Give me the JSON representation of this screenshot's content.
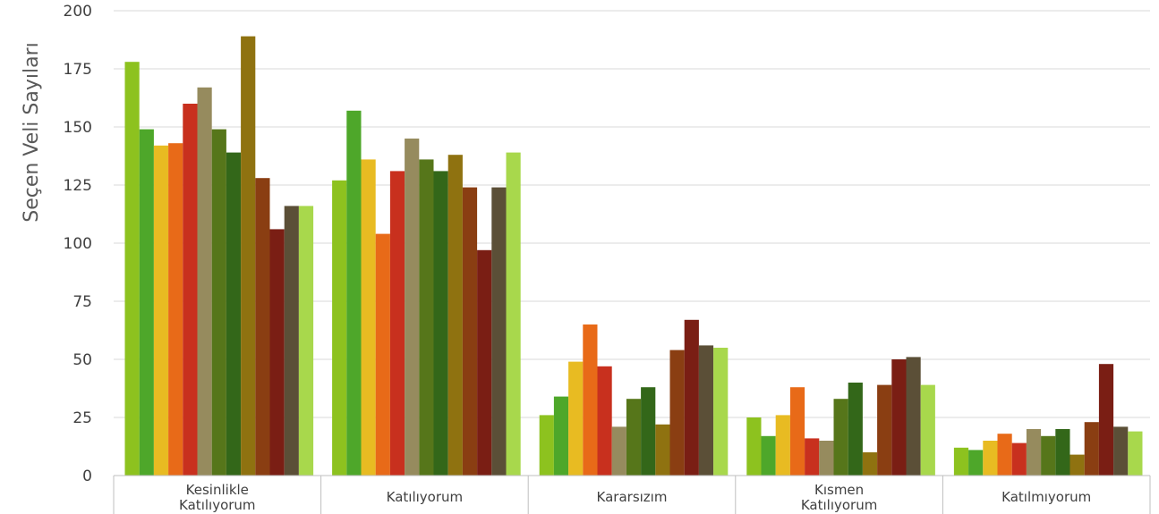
{
  "chart_data": {
    "type": "bar",
    "title": "",
    "xlabel": "",
    "ylabel": "Seçen Veli Sayıları",
    "ylim": [
      0,
      200
    ],
    "yticks": [
      0,
      25,
      50,
      75,
      100,
      125,
      150,
      175,
      200
    ],
    "grid": true,
    "legend": "none",
    "categories": [
      [
        "Kesinlikle",
        "Katılıyorum"
      ],
      [
        "Katılıyorum"
      ],
      [
        "Kararsızım"
      ],
      [
        "Kısmen",
        "Katılıyorum"
      ],
      [
        "Katılmıyorum"
      ]
    ],
    "series": [
      {
        "color": "#8dc21f",
        "values": [
          178,
          127,
          26,
          25,
          12
        ]
      },
      {
        "color": "#4ea72a",
        "values": [
          149,
          157,
          34,
          17,
          11
        ]
      },
      {
        "color": "#e8bb22",
        "values": [
          142,
          136,
          49,
          26,
          15
        ]
      },
      {
        "color": "#e86a18",
        "values": [
          143,
          104,
          65,
          38,
          18
        ]
      },
      {
        "color": "#c8301e",
        "values": [
          160,
          131,
          47,
          16,
          14
        ]
      },
      {
        "color": "#968b5e",
        "values": [
          167,
          145,
          21,
          15,
          20
        ]
      },
      {
        "color": "#56761a",
        "values": [
          149,
          136,
          33,
          33,
          17
        ]
      },
      {
        "color": "#336719",
        "values": [
          139,
          131,
          38,
          40,
          20
        ]
      },
      {
        "color": "#8f7210",
        "values": [
          189,
          138,
          22,
          10,
          9
        ]
      },
      {
        "color": "#8a3e12",
        "values": [
          128,
          124,
          54,
          39,
          23
        ]
      },
      {
        "color": "#7a1e14",
        "values": [
          106,
          97,
          67,
          50,
          48
        ]
      },
      {
        "color": "#5b4f37",
        "values": [
          116,
          124,
          56,
          51,
          21
        ]
      },
      {
        "color": "#a8d84c",
        "values": [
          116,
          139,
          55,
          39,
          19
        ]
      }
    ]
  }
}
